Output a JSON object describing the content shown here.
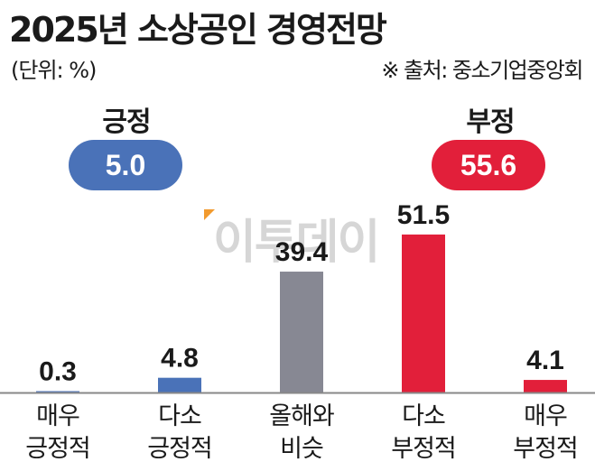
{
  "title": "2025년 소상공인 경영전망",
  "unit": "(단위: %)",
  "source": "※ 출처: 중소기업중앙회",
  "summary": {
    "positive": {
      "label": "긍정",
      "value": "5.0",
      "color": "#4a72b8"
    },
    "negative": {
      "label": "부정",
      "value": "55.6",
      "color": "#e21f3a"
    }
  },
  "watermark": "이투데이",
  "chart_data": {
    "type": "bar",
    "categories": [
      [
        "매우",
        "긍정적"
      ],
      [
        "다소",
        "긍정적"
      ],
      [
        "올해와",
        "비슷"
      ],
      [
        "다소",
        "부정적"
      ],
      [
        "매우",
        "부정적"
      ]
    ],
    "values": [
      0.3,
      4.8,
      39.4,
      51.5,
      4.1
    ],
    "value_labels": [
      "0.3",
      "4.8",
      "39.4",
      "51.5",
      "4.1"
    ],
    "colors": [
      "#4a72b8",
      "#4a72b8",
      "#878893",
      "#e21f3a",
      "#e21f3a"
    ],
    "baseline_color": "#888888",
    "grid": false
  }
}
